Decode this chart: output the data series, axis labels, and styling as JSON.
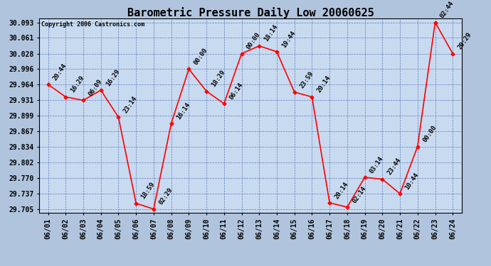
{
  "title": "Barometric Pressure Daily Low 20060625",
  "copyright": "Copyright 2006 Castronics.com",
  "dates": [
    "06/01",
    "06/02",
    "06/03",
    "06/04",
    "06/05",
    "06/06",
    "06/07",
    "06/08",
    "06/09",
    "06/10",
    "06/11",
    "06/12",
    "06/13",
    "06/14",
    "06/15",
    "06/16",
    "06/17",
    "06/18",
    "06/19",
    "06/20",
    "06/21",
    "06/22",
    "06/23",
    "06/24"
  ],
  "values": [
    29.964,
    29.938,
    29.931,
    29.952,
    29.896,
    29.717,
    29.705,
    29.883,
    29.996,
    29.95,
    29.924,
    30.028,
    30.044,
    30.032,
    29.948,
    29.938,
    29.718,
    29.709,
    29.771,
    29.767,
    29.737,
    29.835,
    30.093,
    30.028
  ],
  "times": [
    "20:44",
    "16:29",
    "06:09",
    "16:29",
    "23:14",
    "18:59",
    "02:29",
    "16:14",
    "00:00",
    "18:29",
    "06:14",
    "00:00",
    "18:14",
    "19:44",
    "23:59",
    "20:14",
    "20:14",
    "02:14",
    "03:14",
    "23:44",
    "10:44",
    "00:00",
    "02:44",
    "20:29"
  ],
  "ylim_min": 29.705,
  "ylim_max": 30.093,
  "yticks": [
    29.705,
    29.737,
    29.77,
    29.802,
    29.834,
    29.867,
    29.899,
    29.931,
    29.964,
    29.996,
    30.028,
    30.061,
    30.093
  ],
  "line_color": "red",
  "bg_color": "#b0c4de",
  "plot_bg_color": "#c8daf0",
  "grid_color": "#4466aa",
  "title_font_size": 11,
  "tick_font_size": 7,
  "label_font_size": 6.5,
  "copyright_font_size": 6
}
